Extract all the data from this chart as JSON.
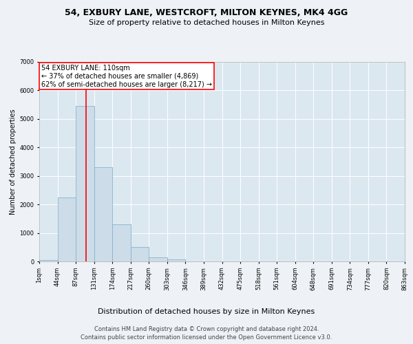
{
  "title": "54, EXBURY LANE, WESTCROFT, MILTON KEYNES, MK4 4GG",
  "subtitle": "Size of property relative to detached houses in Milton Keynes",
  "xlabel": "Distribution of detached houses by size in Milton Keynes",
  "ylabel": "Number of detached properties",
  "footnote1": "Contains HM Land Registry data © Crown copyright and database right 2024.",
  "footnote2": "Contains public sector information licensed under the Open Government Licence v3.0.",
  "annotation_line1": "54 EXBURY LANE: 110sqm",
  "annotation_line2": "← 37% of detached houses are smaller (4,869)",
  "annotation_line3": "62% of semi-detached houses are larger (8,217) →",
  "bar_values": [
    50,
    2250,
    5450,
    3300,
    1300,
    500,
    150,
    80,
    0,
    0,
    0,
    0,
    0,
    0,
    0,
    0,
    0,
    0,
    0,
    0
  ],
  "bin_labels": [
    "1sqm",
    "44sqm",
    "87sqm",
    "131sqm",
    "174sqm",
    "217sqm",
    "260sqm",
    "303sqm",
    "346sqm",
    "389sqm",
    "432sqm",
    "475sqm",
    "518sqm",
    "561sqm",
    "604sqm",
    "648sqm",
    "691sqm",
    "734sqm",
    "777sqm",
    "820sqm",
    "863sqm"
  ],
  "bar_color": "#ccdce8",
  "bar_edgecolor": "#88b4cc",
  "redline_x": 2.57,
  "ylim": [
    0,
    7000
  ],
  "yticks": [
    0,
    1000,
    2000,
    3000,
    4000,
    5000,
    6000,
    7000
  ],
  "bg_color": "#eef2f6",
  "plot_bg": "#dce8f0",
  "grid_color": "#ffffff",
  "title_fontsize": 9,
  "subtitle_fontsize": 8,
  "xlabel_fontsize": 8,
  "ylabel_fontsize": 7,
  "tick_fontsize": 6,
  "annotation_fontsize": 7,
  "footnote_fontsize": 6
}
